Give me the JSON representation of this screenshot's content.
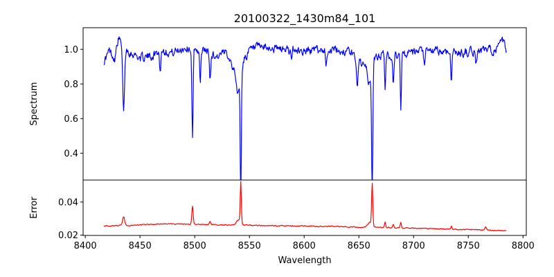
{
  "chart_data": {
    "type": "line",
    "title": "20100322_1430m84_101",
    "xlabel": "Wavelength",
    "xlim": [
      8398,
      8803
    ],
    "xticks": [
      8400,
      8450,
      8500,
      8550,
      8600,
      8650,
      8700,
      8750,
      8800
    ],
    "panels": [
      {
        "name": "spectrum",
        "ylabel": "Spectrum",
        "ylim": [
          0.245,
          1.125
        ],
        "yticks": [
          0.4,
          0.6,
          0.8,
          1.0
        ],
        "ytick_labels": [
          "0.4",
          "0.6",
          "0.8",
          "1.0"
        ],
        "color": "#0000ff",
        "continuum": [
          [
            8417,
            0.93
          ],
          [
            8422,
            0.99
          ],
          [
            8427,
            0.95
          ],
          [
            8430,
            1.06
          ],
          [
            8440,
            0.99
          ],
          [
            8450,
            0.95
          ],
          [
            8460,
            0.96
          ],
          [
            8470,
            1.0
          ],
          [
            8480,
            0.98
          ],
          [
            8490,
            1.01
          ],
          [
            8510,
            0.99
          ],
          [
            8520,
            0.96
          ],
          [
            8530,
            0.98
          ],
          [
            8537,
            0.88
          ],
          [
            8550,
            0.99
          ],
          [
            8560,
            1.01
          ],
          [
            8580,
            1.0
          ],
          [
            8600,
            0.99
          ],
          [
            8620,
            1.0
          ],
          [
            8640,
            0.99
          ],
          [
            8650,
            0.94
          ],
          [
            8655,
            0.9
          ],
          [
            8670,
            0.97
          ],
          [
            8680,
            0.96
          ],
          [
            8700,
            0.98
          ],
          [
            8720,
            0.99
          ],
          [
            8740,
            0.98
          ],
          [
            8760,
            0.99
          ],
          [
            8775,
            1.0
          ],
          [
            8782,
            1.04
          ],
          [
            8785,
            0.98
          ]
        ],
        "lines": [
          [
            8435.0,
            0.37,
            0.9
          ],
          [
            8468.5,
            0.12,
            0.6
          ],
          [
            8498.0,
            0.53,
            0.55
          ],
          [
            8505.0,
            0.2,
            0.55
          ],
          [
            8514.0,
            0.15,
            0.6
          ],
          [
            8542.1,
            0.71,
            0.5
          ],
          [
            8540.0,
            0.15,
            2.0
          ],
          [
            8588.5,
            0.08,
            0.6
          ],
          [
            8620.0,
            0.08,
            0.6
          ],
          [
            8648.5,
            0.16,
            0.6
          ],
          [
            8662.2,
            0.69,
            0.55
          ],
          [
            8660.0,
            0.13,
            1.8
          ],
          [
            8674.0,
            0.18,
            0.5
          ],
          [
            8681.5,
            0.16,
            0.5
          ],
          [
            8688.3,
            0.31,
            0.5
          ],
          [
            8710.0,
            0.09,
            0.6
          ],
          [
            8734.5,
            0.17,
            0.5
          ],
          [
            8757.0,
            0.07,
            0.6
          ]
        ]
      },
      {
        "name": "error",
        "ylabel": "Error",
        "ylim": [
          0.0198,
          0.0533
        ],
        "yticks": [
          0.02,
          0.04
        ],
        "ytick_labels": [
          "0.02",
          "0.04"
        ],
        "color": "#ff0000",
        "continuum": [
          [
            8417,
            0.0257
          ],
          [
            8440,
            0.0258
          ],
          [
            8470,
            0.0268
          ],
          [
            8500,
            0.0265
          ],
          [
            8530,
            0.0262
          ],
          [
            8560,
            0.0257
          ],
          [
            8600,
            0.0255
          ],
          [
            8640,
            0.025
          ],
          [
            8680,
            0.0245
          ],
          [
            8720,
            0.0238
          ],
          [
            8760,
            0.0232
          ],
          [
            8785,
            0.0225
          ]
        ],
        "lines": [
          [
            8435.0,
            0.0055,
            0.9
          ],
          [
            8498.0,
            0.011,
            0.6
          ],
          [
            8514.0,
            0.002,
            0.6
          ],
          [
            8542.1,
            0.0245,
            0.5
          ],
          [
            8540.0,
            0.003,
            2.0
          ],
          [
            8662.2,
            0.0255,
            0.55
          ],
          [
            8660.0,
            0.003,
            1.8
          ],
          [
            8674.0,
            0.003,
            0.5
          ],
          [
            8681.5,
            0.002,
            0.5
          ],
          [
            8688.3,
            0.0035,
            0.5
          ],
          [
            8734.5,
            0.002,
            0.5
          ],
          [
            8766.0,
            0.0018,
            0.8
          ]
        ]
      }
    ]
  }
}
